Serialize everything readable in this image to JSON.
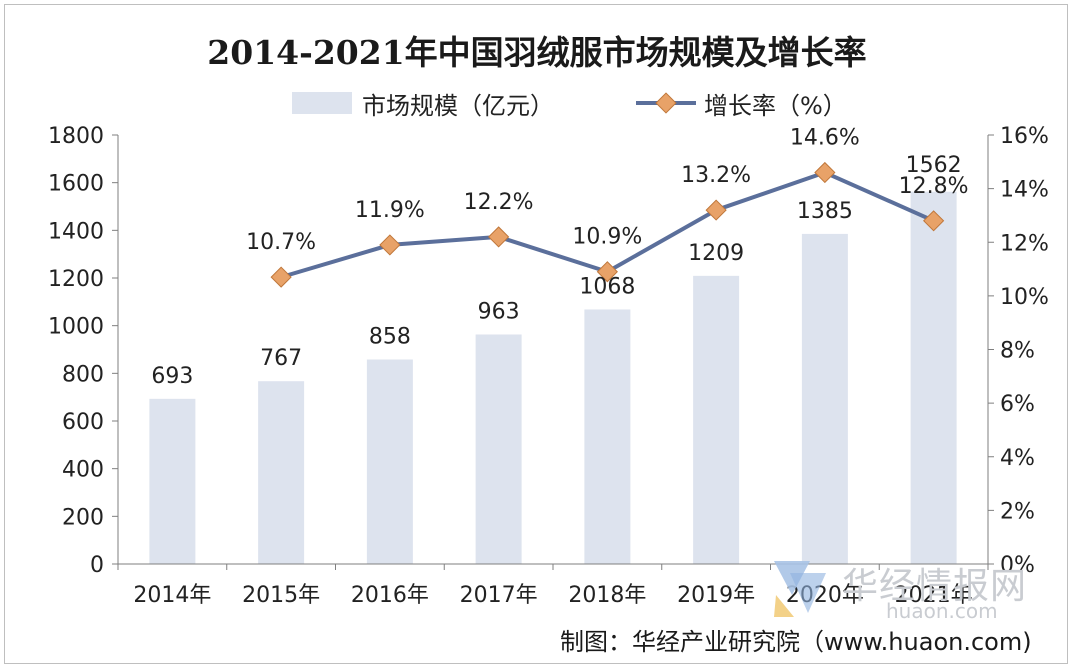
{
  "chart_data": {
    "type": "bar+line",
    "title": "2014-2021年中国羽绒服市场规模及增长率",
    "categories": [
      "2014年",
      "2015年",
      "2016年",
      "2017年",
      "2018年",
      "2019年",
      "2020年",
      "2021年"
    ],
    "series": [
      {
        "name": "市场规模（亿元）",
        "type": "bar",
        "axis": "left",
        "values": [
          693,
          767,
          858,
          963,
          1068,
          1209,
          1385,
          1562
        ],
        "labels": [
          "693",
          "767",
          "858",
          "963",
          "1068",
          "1209",
          "1385",
          "1562"
        ]
      },
      {
        "name": "增长率（%）",
        "type": "line",
        "axis": "right",
        "values": [
          null,
          10.7,
          11.9,
          12.2,
          10.9,
          13.2,
          14.6,
          12.8
        ],
        "labels": [
          "",
          "10.7%",
          "11.9%",
          "12.2%",
          "10.9%",
          "13.2%",
          "14.6%",
          "12.8%"
        ]
      }
    ],
    "y_left": {
      "ylim": [
        0,
        1800
      ],
      "ticks": [
        "0",
        "200",
        "400",
        "600",
        "800",
        "1000",
        "1200",
        "1400",
        "1600",
        "1800"
      ]
    },
    "y_right": {
      "ylim": [
        0,
        16
      ],
      "ticks": [
        "0%",
        "2%",
        "4%",
        "6%",
        "8%",
        "10%",
        "12%",
        "14%",
        "16%"
      ]
    },
    "legend_position": "top",
    "grid": false
  },
  "colors": {
    "bar": "#dde3ee",
    "line": "#5b6f9b",
    "marker_fill": "#e8a268",
    "marker_stroke": "#c0773a",
    "axis": "#7f7f7f",
    "text": "#222222"
  },
  "source": "制图：华经产业研究院（www.huaon.com)",
  "watermark": {
    "title": "华经情报网",
    "url": "huaon.com"
  }
}
